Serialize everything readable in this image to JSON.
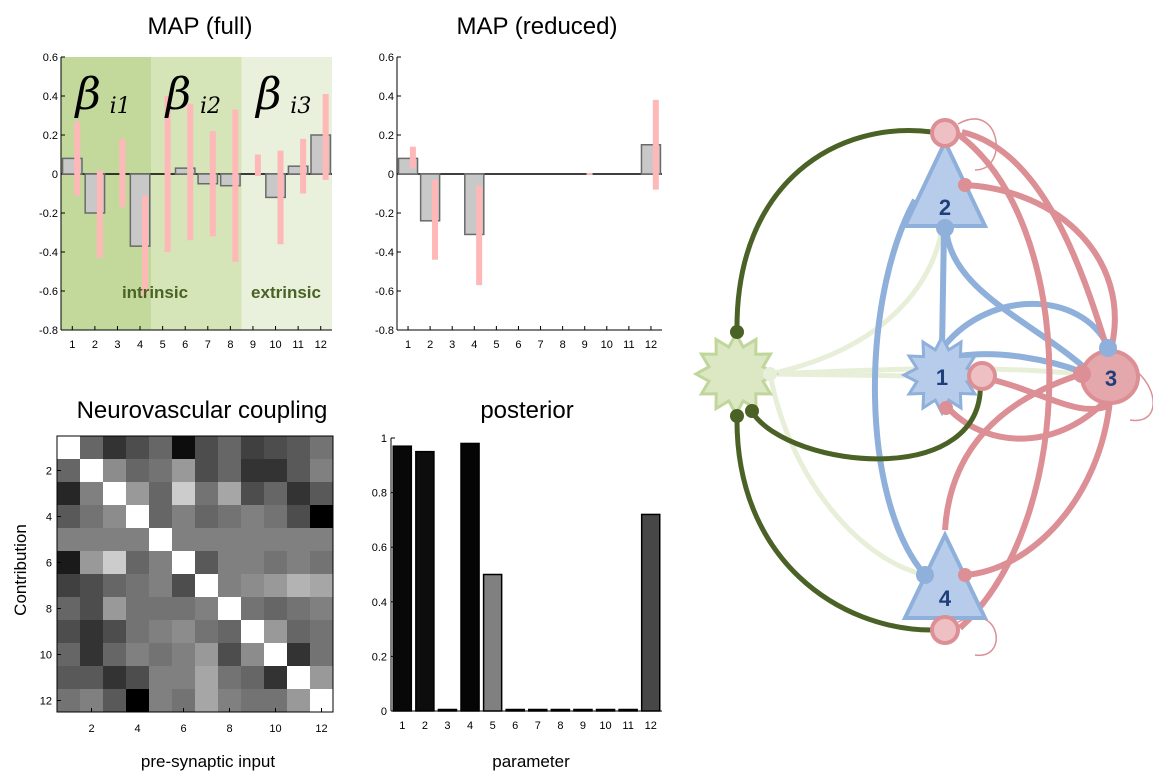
{
  "chart_data": [
    {
      "type": "bar",
      "title": "MAP (full)",
      "categories": [
        "1",
        "2",
        "3",
        "4",
        "5",
        "6",
        "7",
        "8",
        "9",
        "10",
        "11",
        "12"
      ],
      "values": [
        0.08,
        -0.2,
        0.0,
        -0.37,
        0.0,
        0.03,
        -0.05,
        -0.06,
        0.0,
        -0.12,
        0.04,
        0.2
      ],
      "ci_low": [
        -0.11,
        -0.43,
        -0.17,
        -0.62,
        -0.4,
        -0.34,
        -0.32,
        -0.45,
        -0.01,
        -0.36,
        -0.1,
        -0.03
      ],
      "ci_high": [
        0.27,
        0.02,
        0.18,
        -0.11,
        0.4,
        0.36,
        0.22,
        0.33,
        0.1,
        0.12,
        0.18,
        0.41
      ],
      "ylim": [
        -0.8,
        0.6
      ],
      "yticks": [
        "0.6",
        "0.4",
        "0.2",
        "0",
        "-0.2",
        "-0.4",
        "-0.6",
        "-0.8"
      ],
      "regions": [
        {
          "label": "β",
          "sub": "i1",
          "from": 1,
          "to": 4,
          "color": "#c3d99c"
        },
        {
          "label": "β",
          "sub": "i2",
          "from": 5,
          "to": 8,
          "color": "#d5e5b8"
        },
        {
          "label": "β",
          "sub": "i3",
          "from": 9,
          "to": 12,
          "color": "#e9f0dc"
        }
      ],
      "region_text": {
        "intrinsic": "intrinsic",
        "extrinsic": "extrinsic"
      }
    },
    {
      "type": "bar",
      "title": "MAP (reduced)",
      "categories": [
        "1",
        "2",
        "3",
        "4",
        "5",
        "6",
        "7",
        "8",
        "9",
        "10",
        "11",
        "12"
      ],
      "values": [
        0.08,
        -0.24,
        0.0,
        -0.31,
        0.0,
        0.0,
        0.0,
        0.0,
        0.0,
        0.0,
        0.0,
        0.15
      ],
      "ci_low": [
        0.03,
        -0.44,
        0,
        -0.57,
        0,
        0,
        0,
        0,
        -0.005,
        0,
        0,
        -0.08
      ],
      "ci_high": [
        0.14,
        -0.03,
        0,
        -0.06,
        0,
        0,
        0,
        0,
        0.005,
        0,
        0,
        0.38
      ],
      "ylim": [
        -0.8,
        0.6
      ],
      "yticks": [
        "0.6",
        "0.4",
        "0.2",
        "0",
        "-0.2",
        "-0.4",
        "-0.6",
        "-0.8"
      ]
    },
    {
      "type": "heatmap",
      "title": "Neurovascular coupling",
      "xlabel": "pre-synaptic input",
      "ylabel": "Contribution",
      "xticks": [
        "2",
        "4",
        "6",
        "8",
        "10",
        "12"
      ],
      "yticks": [
        "2",
        "4",
        "6",
        "8",
        "10",
        "12"
      ],
      "matrix": [
        [
          1.0,
          0.4,
          0.2,
          0.3,
          0.4,
          0.05,
          0.3,
          0.4,
          0.25,
          0.3,
          0.35,
          0.45
        ],
        [
          0.4,
          1.0,
          0.55,
          0.4,
          0.45,
          0.6,
          0.3,
          0.4,
          0.2,
          0.2,
          0.35,
          0.5
        ],
        [
          0.15,
          0.5,
          1.0,
          0.6,
          0.4,
          0.8,
          0.45,
          0.65,
          0.3,
          0.4,
          0.2,
          0.35
        ],
        [
          0.35,
          0.45,
          0.55,
          1.0,
          0.4,
          0.5,
          0.4,
          0.45,
          0.5,
          0.45,
          0.3,
          0.0
        ],
        [
          0.5,
          0.5,
          0.5,
          0.5,
          1.0,
          0.5,
          0.5,
          0.5,
          0.5,
          0.5,
          0.5,
          0.5
        ],
        [
          0.1,
          0.6,
          0.8,
          0.4,
          0.5,
          1.0,
          0.35,
          0.5,
          0.5,
          0.45,
          0.5,
          0.45
        ],
        [
          0.25,
          0.3,
          0.4,
          0.45,
          0.5,
          0.3,
          1.0,
          0.5,
          0.55,
          0.6,
          0.7,
          0.65
        ],
        [
          0.4,
          0.3,
          0.6,
          0.45,
          0.45,
          0.45,
          0.5,
          1.0,
          0.45,
          0.4,
          0.45,
          0.5
        ],
        [
          0.3,
          0.2,
          0.3,
          0.45,
          0.5,
          0.55,
          0.45,
          0.4,
          1.0,
          0.6,
          0.4,
          0.45
        ],
        [
          0.4,
          0.2,
          0.4,
          0.5,
          0.45,
          0.5,
          0.6,
          0.3,
          0.55,
          1.0,
          0.2,
          0.45
        ],
        [
          0.35,
          0.35,
          0.2,
          0.3,
          0.5,
          0.5,
          0.65,
          0.45,
          0.4,
          0.2,
          1.0,
          0.6
        ],
        [
          0.45,
          0.5,
          0.35,
          0.0,
          0.5,
          0.45,
          0.65,
          0.5,
          0.45,
          0.45,
          0.6,
          1.0
        ]
      ]
    },
    {
      "type": "bar",
      "title": "posterior",
      "xlabel": "parameter",
      "categories": [
        "1",
        "2",
        "3",
        "4",
        "5",
        "6",
        "7",
        "8",
        "9",
        "10",
        "11",
        "12"
      ],
      "values": [
        0.97,
        0.95,
        0.0,
        0.98,
        0.5,
        0.0,
        0.0,
        0.0,
        0.0,
        0.0,
        0.0,
        0.72
      ],
      "ylim": [
        0,
        1
      ],
      "yticks": [
        "1",
        "0.8",
        "0.6",
        "0.4",
        "0.2",
        "0"
      ]
    }
  ],
  "diagram": {
    "nodes": [
      {
        "id": "1",
        "label": "1"
      },
      {
        "id": "2",
        "label": "2"
      },
      {
        "id": "3",
        "label": "3"
      },
      {
        "id": "4",
        "label": "4"
      }
    ],
    "colors": {
      "green": "#4b6226",
      "light_green": "#e8efd9",
      "blue": "#8fb0da",
      "pink": "#dc8f95",
      "node_fill": "#b7cceb"
    }
  }
}
